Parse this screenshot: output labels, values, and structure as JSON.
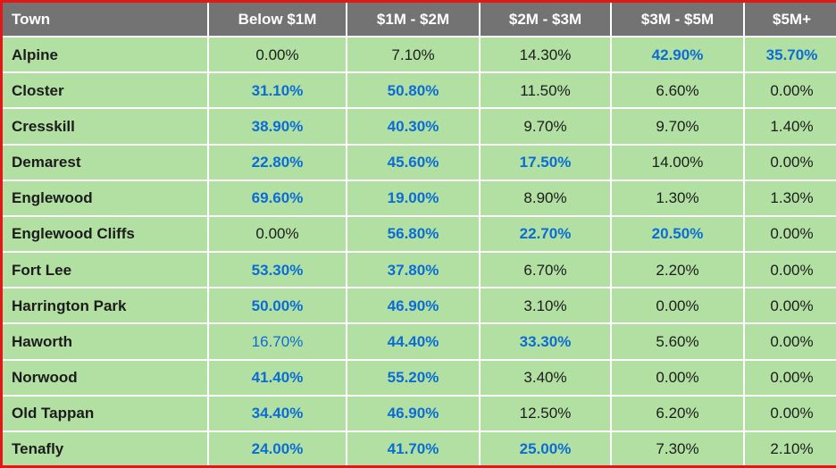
{
  "colors": {
    "header_bg": "#737373",
    "header_text": "#ffffff",
    "body_bg": "#b2e0a2",
    "text_black": "#1c1c1c",
    "highlight_blue": "#0b6cd6",
    "outer_border": "#e41616",
    "gridline": "#ffffff"
  },
  "table": {
    "columns": [
      "Town",
      "Below $1M",
      "$1M - $2M",
      "$2M - $3M",
      "$3M - $5M",
      "$5M+"
    ],
    "rows": [
      {
        "town": "Alpine",
        "cells": [
          {
            "value": "0.00%",
            "style": "normal"
          },
          {
            "value": "7.10%",
            "style": "normal"
          },
          {
            "value": "14.30%",
            "style": "normal"
          },
          {
            "value": "42.90%",
            "style": "bold-blue"
          },
          {
            "value": "35.70%",
            "style": "bold-blue"
          }
        ]
      },
      {
        "town": "Closter",
        "cells": [
          {
            "value": "31.10%",
            "style": "bold-blue"
          },
          {
            "value": "50.80%",
            "style": "bold-blue"
          },
          {
            "value": "11.50%",
            "style": "normal"
          },
          {
            "value": "6.60%",
            "style": "normal"
          },
          {
            "value": "0.00%",
            "style": "normal"
          }
        ]
      },
      {
        "town": "Cresskill",
        "cells": [
          {
            "value": "38.90%",
            "style": "bold-blue"
          },
          {
            "value": "40.30%",
            "style": "bold-blue"
          },
          {
            "value": "9.70%",
            "style": "normal"
          },
          {
            "value": "9.70%",
            "style": "normal"
          },
          {
            "value": "1.40%",
            "style": "normal"
          }
        ]
      },
      {
        "town": "Demarest",
        "cells": [
          {
            "value": "22.80%",
            "style": "bold-blue"
          },
          {
            "value": "45.60%",
            "style": "bold-blue"
          },
          {
            "value": "17.50%",
            "style": "bold-blue"
          },
          {
            "value": "14.00%",
            "style": "normal"
          },
          {
            "value": "0.00%",
            "style": "normal"
          }
        ]
      },
      {
        "town": "Englewood",
        "cells": [
          {
            "value": "69.60%",
            "style": "bold-blue"
          },
          {
            "value": "19.00%",
            "style": "bold-blue"
          },
          {
            "value": "8.90%",
            "style": "normal"
          },
          {
            "value": "1.30%",
            "style": "normal"
          },
          {
            "value": "1.30%",
            "style": "normal"
          }
        ]
      },
      {
        "town": "Englewood Cliffs",
        "cells": [
          {
            "value": "0.00%",
            "style": "normal"
          },
          {
            "value": "56.80%",
            "style": "bold-blue"
          },
          {
            "value": "22.70%",
            "style": "bold-blue"
          },
          {
            "value": "20.50%",
            "style": "bold-blue"
          },
          {
            "value": "0.00%",
            "style": "normal"
          }
        ]
      },
      {
        "town": "Fort Lee",
        "cells": [
          {
            "value": "53.30%",
            "style": "bold-blue"
          },
          {
            "value": "37.80%",
            "style": "bold-blue"
          },
          {
            "value": "6.70%",
            "style": "normal"
          },
          {
            "value": "2.20%",
            "style": "normal"
          },
          {
            "value": "0.00%",
            "style": "normal"
          }
        ]
      },
      {
        "town": "Harrington Park",
        "cells": [
          {
            "value": "50.00%",
            "style": "bold-blue"
          },
          {
            "value": "46.90%",
            "style": "bold-blue"
          },
          {
            "value": "3.10%",
            "style": "normal"
          },
          {
            "value": "0.00%",
            "style": "normal"
          },
          {
            "value": "0.00%",
            "style": "normal"
          }
        ]
      },
      {
        "town": "Haworth",
        "cells": [
          {
            "value": "16.70%",
            "style": "blue"
          },
          {
            "value": "44.40%",
            "style": "bold-blue"
          },
          {
            "value": "33.30%",
            "style": "bold-blue"
          },
          {
            "value": "5.60%",
            "style": "normal"
          },
          {
            "value": "0.00%",
            "style": "normal"
          }
        ]
      },
      {
        "town": "Norwood",
        "cells": [
          {
            "value": "41.40%",
            "style": "bold-blue"
          },
          {
            "value": "55.20%",
            "style": "bold-blue"
          },
          {
            "value": "3.40%",
            "style": "normal"
          },
          {
            "value": "0.00%",
            "style": "normal"
          },
          {
            "value": "0.00%",
            "style": "normal"
          }
        ]
      },
      {
        "town": "Old Tappan",
        "cells": [
          {
            "value": "34.40%",
            "style": "bold-blue"
          },
          {
            "value": "46.90%",
            "style": "bold-blue"
          },
          {
            "value": "12.50%",
            "style": "normal"
          },
          {
            "value": "6.20%",
            "style": "normal"
          },
          {
            "value": "0.00%",
            "style": "normal"
          }
        ]
      },
      {
        "town": "Tenafly",
        "cells": [
          {
            "value": "24.00%",
            "style": "bold-blue"
          },
          {
            "value": "41.70%",
            "style": "bold-blue"
          },
          {
            "value": "25.00%",
            "style": "bold-blue"
          },
          {
            "value": "7.30%",
            "style": "normal"
          },
          {
            "value": "2.10%",
            "style": "normal"
          }
        ]
      }
    ]
  },
  "chart_data": {
    "type": "table",
    "title": "",
    "columns": [
      "Town",
      "Below $1M",
      "$1M - $2M",
      "$2M - $3M",
      "$3M - $5M",
      "$5M+"
    ],
    "units": "percent",
    "rows": [
      [
        "Alpine",
        0.0,
        7.1,
        14.3,
        42.9,
        35.7
      ],
      [
        "Closter",
        31.1,
        50.8,
        11.5,
        6.6,
        0.0
      ],
      [
        "Cresskill",
        38.9,
        40.3,
        9.7,
        9.7,
        1.4
      ],
      [
        "Demarest",
        22.8,
        45.6,
        17.5,
        14.0,
        0.0
      ],
      [
        "Englewood",
        69.6,
        19.0,
        8.9,
        1.3,
        1.3
      ],
      [
        "Englewood Cliffs",
        0.0,
        56.8,
        22.7,
        20.5,
        0.0
      ],
      [
        "Fort Lee",
        53.3,
        37.8,
        6.7,
        2.2,
        0.0
      ],
      [
        "Harrington Park",
        50.0,
        46.9,
        3.1,
        0.0,
        0.0
      ],
      [
        "Haworth",
        16.7,
        44.4,
        33.3,
        5.6,
        0.0
      ],
      [
        "Norwood",
        41.4,
        55.2,
        3.4,
        0.0,
        0.0
      ],
      [
        "Old Tappan",
        34.4,
        46.9,
        12.5,
        6.2,
        0.0
      ],
      [
        "Tenafly",
        24.0,
        41.7,
        25.0,
        7.3,
        2.1
      ]
    ],
    "highlight_color_meaning": "blue bold values mark dominant price-band shares"
  }
}
